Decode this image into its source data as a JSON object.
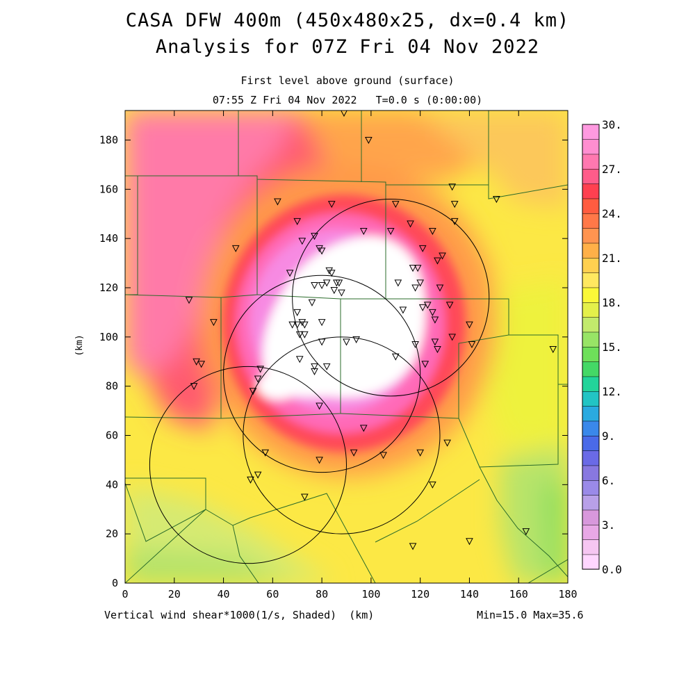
{
  "header": {
    "title_line1": "CASA DFW 400m (450x480x25, dx=0.4 km)",
    "title_line2": "Analysis for 07Z Fri 04 Nov 2022",
    "subtitle_line1": "First level above ground (surface)",
    "subtitle_line2": "07:55 Z Fri 04 Nov 2022   T=0.0 s (0:00:00)"
  },
  "footer": {
    "variable_label": "Vertical wind shear*1000(1/s, Shaded)  (km)",
    "minmax": "Min=15.0 Max=35.6"
  },
  "chart_data": {
    "type": "heatmap",
    "field": "Vertical wind shear*1000 (1/s)",
    "xlabel": "(km)",
    "ylabel": "(km)",
    "xlim": [
      0,
      180
    ],
    "ylim": [
      0,
      192
    ],
    "xticks": [
      0,
      20,
      40,
      60,
      80,
      100,
      120,
      140,
      160,
      180
    ],
    "yticks": [
      0,
      20,
      40,
      60,
      80,
      100,
      120,
      140,
      160,
      180
    ],
    "min": 15.0,
    "max": 35.6,
    "colorbar": {
      "range": [
        0,
        30
      ],
      "labels": [
        {
          "value": 30,
          "text": "30."
        },
        {
          "value": 27,
          "text": "27."
        },
        {
          "value": 24,
          "text": "24."
        },
        {
          "value": 21,
          "text": "21."
        },
        {
          "value": 18,
          "text": "18."
        },
        {
          "value": 15,
          "text": "15."
        },
        {
          "value": 12,
          "text": "12."
        },
        {
          "value": 9,
          "text": "9."
        },
        {
          "value": 6,
          "text": "6."
        },
        {
          "value": 3,
          "text": "3."
        },
        {
          "value": 0,
          "text": "0.0"
        }
      ],
      "colors": [
        "#ffd6ff",
        "#f6c6f2",
        "#e8a8e6",
        "#d898dc",
        "#b8a0e8",
        "#9a8ae8",
        "#8878e0",
        "#6a6ae6",
        "#4a6ae8",
        "#3a88ea",
        "#2aaae0",
        "#22c4c4",
        "#22d49a",
        "#44d866",
        "#6ee05a",
        "#98e466",
        "#c2ea6c",
        "#e4f04a",
        "#faf838",
        "#ffe860",
        "#ffd050",
        "#ffb048",
        "#ff9450",
        "#ff7848",
        "#ff5c40",
        "#ff4050",
        "#ff5c8a",
        "#ff78b0",
        "#ff8ed0",
        "#ff9ae0"
      ]
    },
    "radars": [
      {
        "x": 80,
        "y": 85
      },
      {
        "x": 108,
        "y": 116
      },
      {
        "x": 50,
        "y": 48
      },
      {
        "x": 88,
        "y": 60
      }
    ],
    "radar_range_km": 40,
    "shear_field": {
      "high_core": {
        "x": 93,
        "y": 107,
        "approx_value": 35
      },
      "background_south": 18,
      "background_northwest": 28
    },
    "stations": [
      [
        89,
        191
      ],
      [
        99,
        180
      ],
      [
        133,
        161
      ],
      [
        134,
        154
      ],
      [
        62,
        155
      ],
      [
        84,
        154
      ],
      [
        110,
        154
      ],
      [
        134,
        147
      ],
      [
        70,
        147
      ],
      [
        116,
        146
      ],
      [
        97,
        143
      ],
      [
        108,
        143
      ],
      [
        125,
        143
      ],
      [
        77,
        141
      ],
      [
        72,
        139
      ],
      [
        79,
        136
      ],
      [
        80,
        135
      ],
      [
        121,
        136
      ],
      [
        117,
        128
      ],
      [
        119,
        128
      ],
      [
        127,
        131
      ],
      [
        129,
        133
      ],
      [
        67,
        126
      ],
      [
        83,
        127
      ],
      [
        84,
        126
      ],
      [
        82,
        122
      ],
      [
        77,
        121
      ],
      [
        86,
        122
      ],
      [
        87,
        122
      ],
      [
        80,
        121
      ],
      [
        85,
        119
      ],
      [
        88,
        118
      ],
      [
        111,
        122
      ],
      [
        120,
        122
      ],
      [
        118,
        120
      ],
      [
        128,
        120
      ],
      [
        76,
        114
      ],
      [
        123,
        113
      ],
      [
        121,
        112
      ],
      [
        113,
        111
      ],
      [
        70,
        110
      ],
      [
        125,
        110
      ],
      [
        132,
        113
      ],
      [
        126,
        107
      ],
      [
        68,
        105
      ],
      [
        70,
        105
      ],
      [
        72,
        106
      ],
      [
        73,
        105
      ],
      [
        80,
        106
      ],
      [
        71,
        101
      ],
      [
        140,
        105
      ],
      [
        73,
        101
      ],
      [
        80,
        98
      ],
      [
        90,
        98
      ],
      [
        94,
        99
      ],
      [
        126,
        98
      ],
      [
        133,
        100
      ],
      [
        118,
        97
      ],
      [
        141,
        97
      ],
      [
        127,
        95
      ],
      [
        71,
        91
      ],
      [
        110,
        92
      ],
      [
        122,
        89
      ],
      [
        174,
        95
      ],
      [
        55,
        87
      ],
      [
        54,
        83
      ],
      [
        77,
        86
      ],
      [
        82,
        88
      ],
      [
        77,
        88
      ],
      [
        52,
        78
      ],
      [
        79,
        72
      ],
      [
        97,
        63
      ],
      [
        57,
        53
      ],
      [
        93,
        53
      ],
      [
        131,
        57
      ],
      [
        105,
        52
      ],
      [
        120,
        53
      ],
      [
        79,
        50
      ],
      [
        54,
        44
      ],
      [
        51,
        42
      ],
      [
        125,
        40
      ],
      [
        73,
        35
      ],
      [
        163,
        21
      ],
      [
        140,
        17
      ],
      [
        117,
        15
      ],
      [
        151,
        156
      ],
      [
        45,
        136
      ],
      [
        26,
        115
      ],
      [
        36,
        106
      ],
      [
        31,
        89
      ],
      [
        29,
        90
      ],
      [
        28,
        80
      ]
    ]
  }
}
